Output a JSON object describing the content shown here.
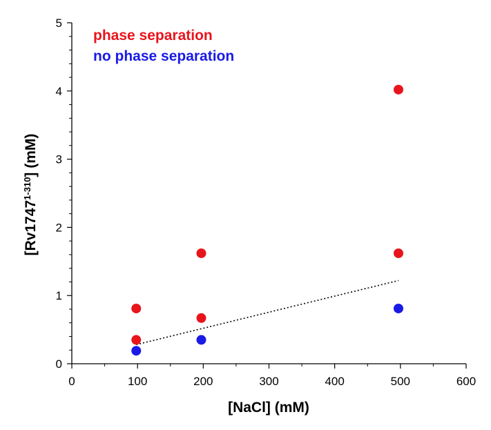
{
  "chart_data": {
    "type": "scatter",
    "xlabel": "[NaCl]  (mM)",
    "ylabel": {
      "prefix": "[Rv1747",
      "superscript": "1-310",
      "suffix": "] (mM)"
    },
    "xlim": [
      0,
      600
    ],
    "ylim": [
      0,
      5
    ],
    "xticks": [
      0,
      100,
      200,
      300,
      400,
      500,
      600
    ],
    "yticks": [
      0,
      1,
      2,
      3,
      4,
      5
    ],
    "grid": false,
    "legend_position": "top-left",
    "series": [
      {
        "name": "phase separation",
        "color": "#e8141c",
        "points": [
          {
            "x": 98,
            "y": 0.81
          },
          {
            "x": 98,
            "y": 0.35
          },
          {
            "x": 197,
            "y": 1.62
          },
          {
            "x": 197,
            "y": 0.67
          },
          {
            "x": 497,
            "y": 4.02
          },
          {
            "x": 497,
            "y": 1.62
          }
        ]
      },
      {
        "name": "no phase separation",
        "color": "#1a1ae6",
        "points": [
          {
            "x": 98,
            "y": 0.19
          },
          {
            "x": 197,
            "y": 0.35
          },
          {
            "x": 497,
            "y": 0.81
          }
        ]
      }
    ],
    "trendline": {
      "style": "dotted",
      "color": "#000000",
      "from": {
        "x": 98,
        "y": 0.28
      },
      "to": {
        "x": 497,
        "y": 1.22
      }
    }
  }
}
